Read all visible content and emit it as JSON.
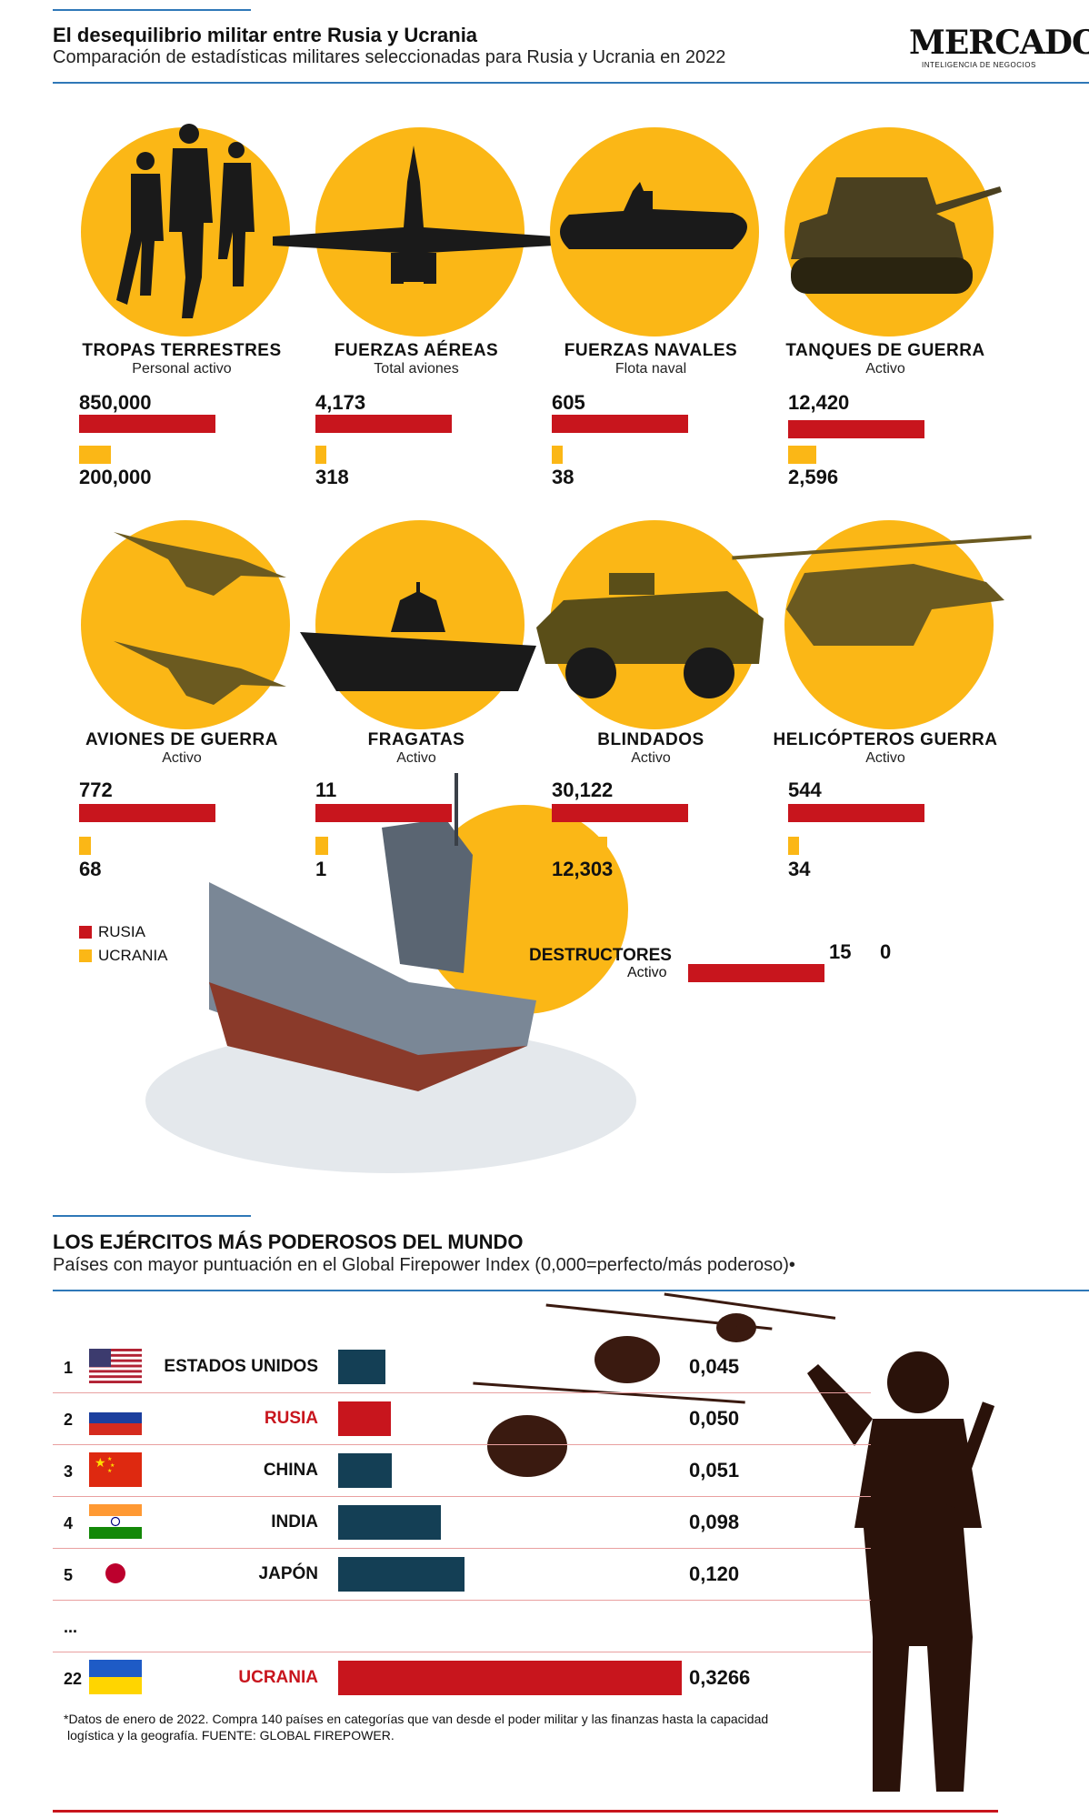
{
  "header": {
    "title": "El desequilibrio militar entre Rusia y Ucrania",
    "subtitle": "Comparación de estadísticas militares seleccionadas para Rusia y Ucrania en 2022",
    "logo": "MERCADO",
    "logo_sub": "INTELIGENCIA DE NEGOCIOS"
  },
  "colors": {
    "russia": "#c8151d",
    "ukraine": "#fbb716",
    "navy": "#143f55",
    "line": "#2f78b8"
  },
  "chart_data": [
    {
      "type": "bar",
      "title": "El desequilibrio militar entre Rusia y Ucrania",
      "subtitle": "Comparación de estadísticas militares seleccionadas para Rusia y Ucrania en 2022",
      "categories": [
        {
          "name": "TROPAS TERRESTRES",
          "unit": "Personal activo",
          "russia": 850000,
          "ukraine": 200000,
          "russia_label": "850,000",
          "ukraine_label": "200,000",
          "icon": "soldiers-icon"
        },
        {
          "name": "FUERZAS AÉREAS",
          "unit": "Total aviones",
          "russia": 4173,
          "ukraine": 318,
          "russia_label": "4,173",
          "ukraine_label": "318",
          "icon": "fighter-jet-icon"
        },
        {
          "name": "FUERZAS NAVALES",
          "unit": "Flota naval",
          "russia": 605,
          "ukraine": 38,
          "russia_label": "605",
          "ukraine_label": "38",
          "icon": "submarine-icon"
        },
        {
          "name": "TANQUES DE GUERRA",
          "unit": "Activo",
          "russia": 12420,
          "ukraine": 2596,
          "russia_label": "12,420",
          "ukraine_label": "2,596",
          "icon": "tank-icon"
        },
        {
          "name": "AVIONES DE GUERRA",
          "unit": "Activo",
          "russia": 772,
          "ukraine": 68,
          "russia_label": "772",
          "ukraine_label": "68",
          "icon": "warplanes-icon"
        },
        {
          "name": "FRAGATAS",
          "unit": "Activo",
          "russia": 11,
          "ukraine": 1,
          "russia_label": "11",
          "ukraine_label": "1",
          "icon": "frigate-icon"
        },
        {
          "name": "BLINDADOS",
          "unit": "Activo",
          "russia": 30122,
          "ukraine": 12303,
          "russia_label": "30,122",
          "ukraine_label": "12,303",
          "icon": "armored-vehicle-icon"
        },
        {
          "name": "HELICÓPTEROS GUERRA",
          "unit": "Activo",
          "russia": 544,
          "ukraine": 34,
          "russia_label": "544",
          "ukraine_label": "34",
          "icon": "helicopter-icon"
        },
        {
          "name": "DESTRUCTORES",
          "unit": "Activo",
          "russia": 15,
          "ukraine": 0,
          "russia_label": "15",
          "ukraine_label": "0",
          "icon": "destroyer-ship-icon"
        }
      ],
      "series": [
        {
          "name": "RUSIA"
        },
        {
          "name": "UCRANIA"
        }
      ],
      "legend": "bottom-left"
    },
    {
      "type": "bar",
      "title": "LOS EJÉRCITOS MÁS PODEROSOS DEL MUNDO",
      "subtitle": "Países con mayor puntuación en el Global Firepower Index (0,000=perfecto/más poderoso)•",
      "rows": [
        {
          "rank": "1",
          "country": "ESTADOS UNIDOS",
          "value": 0.045,
          "label": "0,045",
          "flag": "usa-flag"
        },
        {
          "rank": "2",
          "country": "RUSIA",
          "value": 0.05,
          "label": "0,050",
          "flag": "russia-flag",
          "highlight": true
        },
        {
          "rank": "3",
          "country": "CHINA",
          "value": 0.051,
          "label": "0,051",
          "flag": "china-flag"
        },
        {
          "rank": "4",
          "country": "INDIA",
          "value": 0.098,
          "label": "0,098",
          "flag": "india-flag"
        },
        {
          "rank": "5",
          "country": "JAPÓN",
          "value": 0.12,
          "label": "0,120",
          "flag": "japan-flag"
        },
        {
          "rank": "...",
          "country": "",
          "value": null,
          "label": "",
          "flag": ""
        },
        {
          "rank": "22",
          "country": "UCRANIA",
          "value": 0.3266,
          "label": "0,3266",
          "flag": "ukraine-flag",
          "highlight": true
        }
      ]
    }
  ],
  "legend": {
    "russia": "RUSIA",
    "ukraine": "UCRANIA"
  },
  "footnote": {
    "line1": "*Datos de enero de 2022. Compra 140 países en categorías que van desde el poder militar y las finanzas hasta la capacidad",
    "line2": "logística y la geografía. FUENTE: GLOBAL FIREPOWER."
  }
}
